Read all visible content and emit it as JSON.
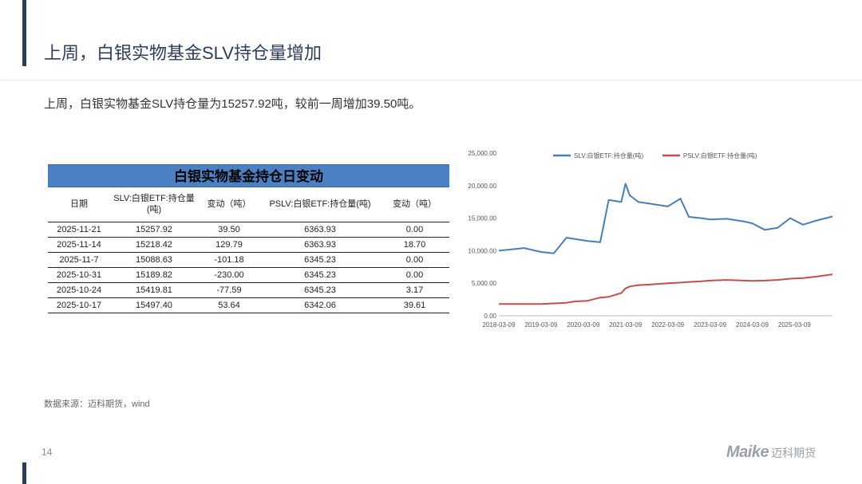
{
  "slide": {
    "title": "上周，白银实物基金SLV持仓量增加",
    "summary": "上周，白银实物基金SLV持仓量为15257.92吨，较前一周增加39.50吨。",
    "source": "数据来源：迈科期货，wind",
    "page_number": "14",
    "logo_mark": "Maike",
    "logo_cn": "迈科期货"
  },
  "table": {
    "title": "白银实物基金持仓日变动",
    "headers": [
      "日期",
      "SLV:白银ETF:持仓量(吨)",
      "变动（吨）",
      "PSLV:白银ETF:持仓量(吨)",
      "变动（吨）"
    ],
    "rows": [
      [
        "2025-11-21",
        "15257.92",
        "39.50",
        "6363.93",
        "0.00"
      ],
      [
        "2025-11-14",
        "15218.42",
        "129.79",
        "6363.93",
        "18.70"
      ],
      [
        "2025-11-7",
        "15088.63",
        "-101.18",
        "6345.23",
        "0.00"
      ],
      [
        "2025-10-31",
        "15189.82",
        "-230.00",
        "6345.23",
        "0.00"
      ],
      [
        "2025-10-24",
        "15419.81",
        "-77.59",
        "6345.23",
        "3.17"
      ],
      [
        "2025-10-17",
        "15497.40",
        "53.64",
        "6342.06",
        "39.61"
      ]
    ]
  },
  "chart_data": {
    "type": "line",
    "title": "",
    "xlabel": "",
    "ylabel": "",
    "ylim": [
      0,
      25000
    ],
    "y_ticks": [
      "0.00",
      "5,000.00",
      "10,000.00",
      "15,000.00",
      "20,000.00",
      "25,000.00"
    ],
    "x_ticks": [
      "2018-03-09",
      "2019-03-09",
      "2020-03-09",
      "2021-03-09",
      "2022-03-09",
      "2023-03-09",
      "2024-03-09",
      "2025-03-09"
    ],
    "legend_position": "top",
    "x": [
      2018.0,
      2018.3,
      2018.6,
      2019.0,
      2019.3,
      2019.6,
      2019.8,
      2020.1,
      2020.4,
      2020.6,
      2020.9,
      2021.0,
      2021.1,
      2021.3,
      2021.6,
      2022.0,
      2022.3,
      2022.5,
      2022.8,
      2023.0,
      2023.4,
      2023.8,
      2024.0,
      2024.3,
      2024.6,
      2024.9,
      2025.2,
      2025.5,
      2025.9
    ],
    "series": [
      {
        "name": "SLV:白银ETF:持仓量(吨)",
        "color": "#4a7ebb",
        "values": [
          10000,
          10200,
          10400,
          9800,
          9600,
          12000,
          11800,
          11500,
          11300,
          17800,
          17500,
          20300,
          18500,
          17500,
          17200,
          16800,
          18000,
          15200,
          15000,
          14800,
          14900,
          14500,
          14200,
          13200,
          13500,
          15000,
          14000,
          14600,
          15258
        ]
      },
      {
        "name": "PSLV:白银ETF:持仓量(吨)",
        "color": "#c0504d",
        "values": [
          1800,
          1800,
          1800,
          1800,
          1900,
          2000,
          2200,
          2300,
          2800,
          2900,
          3500,
          4200,
          4500,
          4700,
          4800,
          5000,
          5100,
          5200,
          5300,
          5400,
          5500,
          5400,
          5350,
          5400,
          5500,
          5700,
          5800,
          6000,
          6364
        ]
      }
    ]
  }
}
